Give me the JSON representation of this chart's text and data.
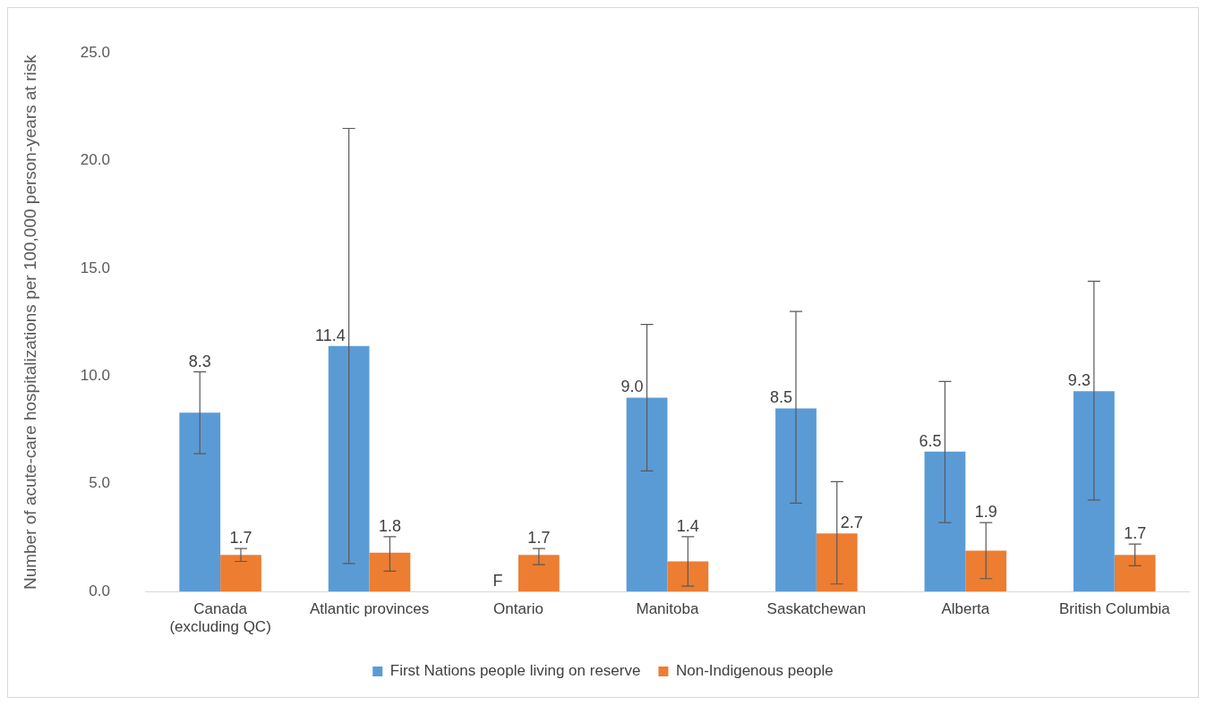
{
  "chart_data": {
    "type": "bar",
    "ylabel": "Number of acute-care hospitalizations per 100,000 person-years at risk",
    "categories": [
      "Canada (excluding QC)",
      "Atlantic provinces",
      "Ontario",
      "Manitoba",
      "Saskatchewan",
      "Alberta",
      "British Columbia"
    ],
    "series": [
      {
        "name": "First Nations people living on reserve",
        "color": "#5b9bd5",
        "values": [
          8.3,
          11.4,
          null,
          9.0,
          8.5,
          6.5,
          9.3
        ],
        "errors": [
          [
            6.4,
            10.2
          ],
          [
            1.3,
            21.5
          ],
          null,
          [
            5.6,
            12.4
          ],
          [
            4.1,
            13.0
          ],
          [
            3.2,
            9.75
          ],
          [
            4.25,
            14.4
          ]
        ],
        "value_labels": [
          "8.3",
          "11.4",
          "F",
          "9.0",
          "8.5",
          "6.5",
          "9.3"
        ]
      },
      {
        "name": "Non-Indigenous people",
        "color": "#ed7d31",
        "values": [
          1.7,
          1.8,
          1.7,
          1.4,
          2.7,
          1.9,
          1.7
        ],
        "errors": [
          [
            1.4,
            2.0
          ],
          [
            0.95,
            2.55
          ],
          [
            1.25,
            2.0
          ],
          [
            0.25,
            2.55
          ],
          [
            0.35,
            5.1
          ],
          [
            0.6,
            3.2
          ],
          [
            1.2,
            2.2
          ]
        ],
        "value_labels": [
          "1.7",
          "1.8",
          "1.7",
          "1.4",
          "2.7",
          "1.9",
          "1.7"
        ]
      }
    ],
    "ylim": [
      0,
      25
    ],
    "yticks": [
      {
        "value": 0,
        "label": "0.0"
      },
      {
        "value": 5,
        "label": "5.0"
      },
      {
        "value": 10,
        "label": "10.0"
      },
      {
        "value": 15,
        "label": "15.0"
      },
      {
        "value": 20,
        "label": "20.0"
      },
      {
        "value": 25,
        "label": "25.0"
      }
    ],
    "grid": false,
    "legend": "bottom"
  }
}
